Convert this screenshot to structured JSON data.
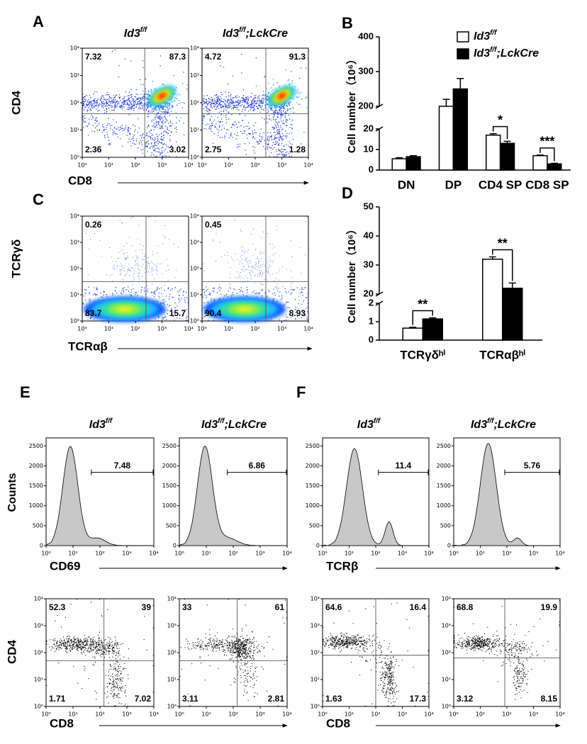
{
  "genotypes": {
    "control": {
      "base": "Id3",
      "sup": "f/f"
    },
    "knockout": {
      "base": "Id3",
      "sup": "f/f",
      "rest": ";LckCre"
    }
  },
  "log_lim": [
    1,
    10000
  ],
  "log_scale": true,
  "log_ticks": [
    {
      "value": 1,
      "label": "10⁰"
    },
    {
      "value": 10,
      "label": "10¹"
    },
    {
      "value": 100,
      "label": "10²"
    },
    {
      "value": 1000,
      "label": "10³"
    },
    {
      "value": 10000,
      "label": "10⁴"
    }
  ],
  "count_ylim": [
    0,
    2700
  ],
  "count_ticks": [
    0,
    500,
    1000,
    1500,
    2000,
    2500
  ],
  "panel_A": {
    "label": "A",
    "y_label": "CD4",
    "x_label": "CD8",
    "plots": [
      {
        "quadrants": [
          "7.32",
          "87.3",
          "2.36",
          "3.02"
        ]
      },
      {
        "quadrants": [
          "4.72",
          "91.3",
          "2.75",
          "1.28"
        ]
      }
    ]
  },
  "panel_C": {
    "label": "C",
    "y_label": "TCRγδ",
    "x_label": "TCRαβ",
    "plots": [
      {
        "quadrants": [
          "0.26",
          "",
          "83.7",
          "15.7"
        ]
      },
      {
        "quadrants": [
          "0.45",
          "",
          "90.4",
          "8.93"
        ]
      }
    ]
  },
  "panel_E": {
    "label": "E",
    "counts_label": "Counts",
    "hist_x_label": "CD69",
    "dot_y_label": "CD4",
    "dot_x_label": "CD8",
    "histograms": [
      {
        "gate": "7.48"
      },
      {
        "gate": "6.86"
      }
    ],
    "dot_plots": [
      {
        "quadrants": [
          "52.3",
          "39",
          "1.71",
          "7.02"
        ]
      },
      {
        "quadrants": [
          "33",
          "61",
          "3.11",
          "2.81"
        ]
      }
    ]
  },
  "panel_F": {
    "label": "F",
    "hist_x_label": "TCRβ",
    "dot_x_label": "CD8",
    "histograms": [
      {
        "gate": "11.4"
      },
      {
        "gate": "5.76"
      }
    ],
    "dot_plots": [
      {
        "quadrants": [
          "64.6",
          "16.4",
          "1.63",
          "17.3"
        ]
      },
      {
        "quadrants": [
          "68.8",
          "19.9",
          "3.12",
          "8.15"
        ]
      }
    ]
  },
  "chart_data": [
    {
      "type": "bar",
      "label": "B",
      "y_label": "Cell number（10⁶）",
      "categories": [
        "DN",
        "DP",
        "CD4 SP",
        "CD8 SP"
      ],
      "ylim": [
        0,
        400
      ],
      "ybreak": [
        20,
        200
      ],
      "yticks": [
        0,
        10,
        20,
        200,
        300,
        400
      ],
      "series": [
        {
          "name": {
            "base": "Id3",
            "sup": "f/f"
          },
          "color": "#ffffff",
          "values": [
            5.5,
            200,
            17,
            7
          ],
          "errors": [
            0.5,
            20,
            0.7,
            0.3
          ]
        },
        {
          "name": {
            "base": "Id3",
            "sup": "f/f",
            "rest": ";LckCre"
          },
          "color": "#000000",
          "values": [
            6.5,
            250,
            13,
            3
          ],
          "errors": [
            0.5,
            30,
            1,
            0.3
          ]
        }
      ],
      "significance": [
        null,
        null,
        "*",
        "***"
      ],
      "legend": "top-right"
    },
    {
      "type": "bar",
      "label": "D",
      "y_label": "Cell number（10⁶）",
      "categories": [
        "TCRγδʰⁱ",
        "TCRαβʰⁱ"
      ],
      "ylim": [
        0,
        50
      ],
      "ybreak": [
        2,
        20
      ],
      "yticks": [
        0,
        1,
        2,
        20,
        30,
        40,
        50
      ],
      "series": [
        {
          "color": "#ffffff",
          "values": [
            0.65,
            32
          ],
          "errors": [
            0.05,
            0.8
          ]
        },
        {
          "color": "#000000",
          "values": [
            1.15,
            22
          ],
          "errors": [
            0.06,
            1.8
          ]
        }
      ],
      "significance": [
        "**",
        "**"
      ]
    }
  ]
}
